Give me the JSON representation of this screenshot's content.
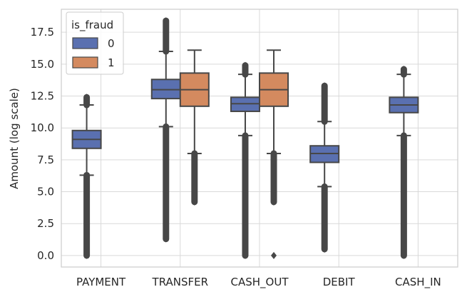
{
  "chart_data": {
    "type": "box",
    "title": "",
    "xlabel": "",
    "ylabel": "Amount (log scale)",
    "ylim": [
      -0.9,
      19.3
    ],
    "yticks": [
      0.0,
      2.5,
      5.0,
      7.5,
      10.0,
      12.5,
      15.0,
      17.5
    ],
    "ytick_labels": [
      "0.0",
      "2.5",
      "5.0",
      "7.5",
      "10.0",
      "12.5",
      "15.0",
      "17.5"
    ],
    "grid": true,
    "legend_title": "is_fraud",
    "legend_placement": "top-left",
    "categories": [
      "PAYMENT",
      "TRANSFER",
      "CASH_OUT",
      "DEBIT",
      "CASH_IN"
    ],
    "series": [
      {
        "name": "0",
        "color": "#5A70B0",
        "boxes": [
          {
            "category": "PAYMENT",
            "whisker_low": 6.3,
            "q1": 8.4,
            "median": 9.1,
            "q3": 9.8,
            "whisker_high": 11.8,
            "outliers_low": [
              0.0,
              6.3
            ],
            "outliers_high": [
              11.8,
              12.4
            ]
          },
          {
            "category": "TRANSFER",
            "whisker_low": 10.1,
            "q1": 12.3,
            "median": 13.0,
            "q3": 13.8,
            "whisker_high": 16.0,
            "outliers_low": [
              1.3,
              10.1
            ],
            "outliers_high": [
              16.0,
              18.4
            ]
          },
          {
            "category": "CASH_OUT",
            "whisker_low": 9.4,
            "q1": 11.3,
            "median": 11.9,
            "q3": 12.4,
            "whisker_high": 14.2,
            "outliers_low": [
              0.0,
              9.4
            ],
            "outliers_high": [
              14.2,
              14.9
            ]
          },
          {
            "category": "DEBIT",
            "whisker_low": 5.4,
            "q1": 7.3,
            "median": 8.0,
            "q3": 8.6,
            "whisker_high": 10.5,
            "outliers_low": [
              0.5,
              5.4
            ],
            "outliers_high": [
              10.5,
              13.3
            ]
          },
          {
            "category": "CASH_IN",
            "whisker_low": 9.4,
            "q1": 11.2,
            "median": 11.8,
            "q3": 12.4,
            "whisker_high": 14.2,
            "outliers_low": [
              0.0,
              9.4
            ],
            "outliers_high": [
              14.2,
              14.6
            ]
          }
        ]
      },
      {
        "name": "1",
        "color": "#D48A5F",
        "boxes": [
          {
            "category": "TRANSFER",
            "whisker_low": 8.0,
            "q1": 11.7,
            "median": 13.0,
            "q3": 14.3,
            "whisker_high": 16.1,
            "outliers_low": [
              4.2,
              8.0
            ],
            "outliers_high": []
          },
          {
            "category": "CASH_OUT",
            "whisker_low": 8.0,
            "q1": 11.7,
            "median": 13.0,
            "q3": 14.3,
            "whisker_high": 16.1,
            "outliers_low": [
              4.2,
              8.0
            ],
            "outliers_extra": [
              0.0
            ],
            "outliers_high": []
          }
        ]
      }
    ]
  }
}
